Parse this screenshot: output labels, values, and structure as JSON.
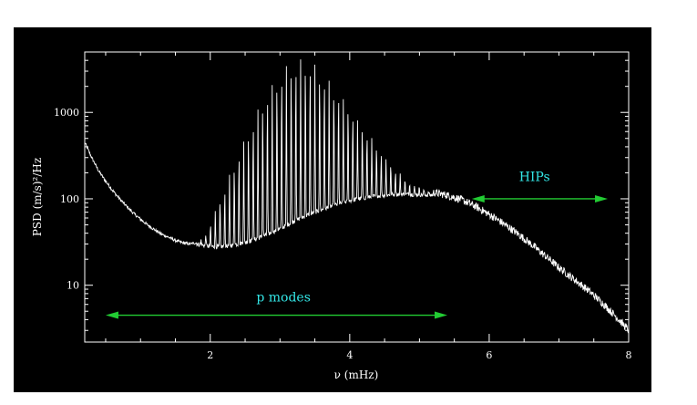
{
  "chart_data": {
    "type": "line",
    "xlabel": "ν (mHz)",
    "ylabel": "PSD (m/s)²/Hz",
    "xlim": [
      0.2,
      8.0
    ],
    "ylim": [
      2.2,
      5000
    ],
    "yscale": "log",
    "x_ticks": [
      2,
      4,
      6,
      8
    ],
    "x_tick_labels": [
      "2",
      "4",
      "6",
      "8"
    ],
    "y_ticks": [
      10,
      100,
      1000
    ],
    "y_tick_labels": [
      "10",
      "100",
      "1000"
    ],
    "grid": false,
    "series": [
      {
        "color": "#ffffff",
        "points": [
          [
            0.2,
            450
          ],
          [
            0.3,
            300
          ],
          [
            0.4,
            210
          ],
          [
            0.5,
            160
          ],
          [
            0.6,
            125
          ],
          [
            0.7,
            100
          ],
          [
            0.8,
            82
          ],
          [
            0.9,
            68
          ],
          [
            1.0,
            58
          ],
          [
            1.1,
            50
          ],
          [
            1.2,
            44
          ],
          [
            1.3,
            39
          ],
          [
            1.4,
            36
          ],
          [
            1.5,
            33
          ],
          [
            1.6,
            31
          ],
          [
            1.7,
            30
          ],
          [
            1.8,
            31
          ],
          [
            1.9,
            35
          ],
          [
            2.0,
            48
          ],
          [
            2.1,
            80
          ],
          [
            2.2,
            120
          ],
          [
            2.3,
            210
          ],
          [
            2.4,
            330
          ],
          [
            2.5,
            520
          ],
          [
            2.6,
            780
          ],
          [
            2.7,
            1150
          ],
          [
            2.8,
            1650
          ],
          [
            2.9,
            2200
          ],
          [
            3.0,
            2900
          ],
          [
            3.1,
            3500
          ],
          [
            3.2,
            4000
          ],
          [
            3.3,
            4200
          ],
          [
            3.4,
            4000
          ],
          [
            3.5,
            3500
          ],
          [
            3.6,
            2900
          ],
          [
            3.7,
            2350
          ],
          [
            3.8,
            1850
          ],
          [
            3.9,
            1450
          ],
          [
            4.0,
            1100
          ],
          [
            4.1,
            850
          ],
          [
            4.2,
            650
          ],
          [
            4.3,
            500
          ],
          [
            4.4,
            380
          ],
          [
            4.5,
            300
          ],
          [
            4.6,
            240
          ],
          [
            4.7,
            195
          ],
          [
            4.8,
            165
          ],
          [
            4.9,
            145
          ],
          [
            5.0,
            132
          ],
          [
            5.1,
            124
          ],
          [
            5.2,
            118
          ],
          [
            5.4,
            110
          ],
          [
            5.6,
            98
          ],
          [
            5.8,
            82
          ],
          [
            6.0,
            66
          ],
          [
            6.2,
            52
          ],
          [
            6.4,
            40
          ],
          [
            6.6,
            30
          ],
          [
            6.8,
            22
          ],
          [
            7.0,
            16
          ],
          [
            7.2,
            12
          ],
          [
            7.4,
            9
          ],
          [
            7.6,
            6.5
          ],
          [
            7.8,
            4.5
          ],
          [
            8.0,
            3.0
          ]
        ],
        "mode_troughs": [
          [
            1.8,
            30
          ],
          [
            2.0,
            28
          ],
          [
            2.2,
            28
          ],
          [
            2.4,
            30
          ],
          [
            2.6,
            33
          ],
          [
            2.8,
            38
          ],
          [
            3.0,
            45
          ],
          [
            3.2,
            55
          ],
          [
            3.4,
            65
          ],
          [
            3.6,
            75
          ],
          [
            3.8,
            85
          ],
          [
            4.0,
            95
          ],
          [
            4.2,
            102
          ],
          [
            4.4,
            108
          ],
          [
            4.6,
            112
          ],
          [
            4.8,
            113
          ],
          [
            5.0,
            112
          ],
          [
            5.2,
            110
          ]
        ],
        "mode_spacing_mhz": 0.068
      }
    ],
    "annotations": [
      {
        "text": "p modes",
        "x": 3.05,
        "y": 6.5,
        "color": "#33e6e6"
      },
      {
        "text": "HIPs",
        "x": 6.65,
        "y": 160,
        "color": "#33e6e6"
      }
    ],
    "arrows": [
      {
        "x_from": 0.5,
        "x_to": 5.4,
        "y": 4.5,
        "color": "#22cc33",
        "double_headed": true
      },
      {
        "x_from": 5.75,
        "x_to": 7.7,
        "y": 100,
        "color": "#22cc33",
        "double_headed": true
      }
    ]
  }
}
